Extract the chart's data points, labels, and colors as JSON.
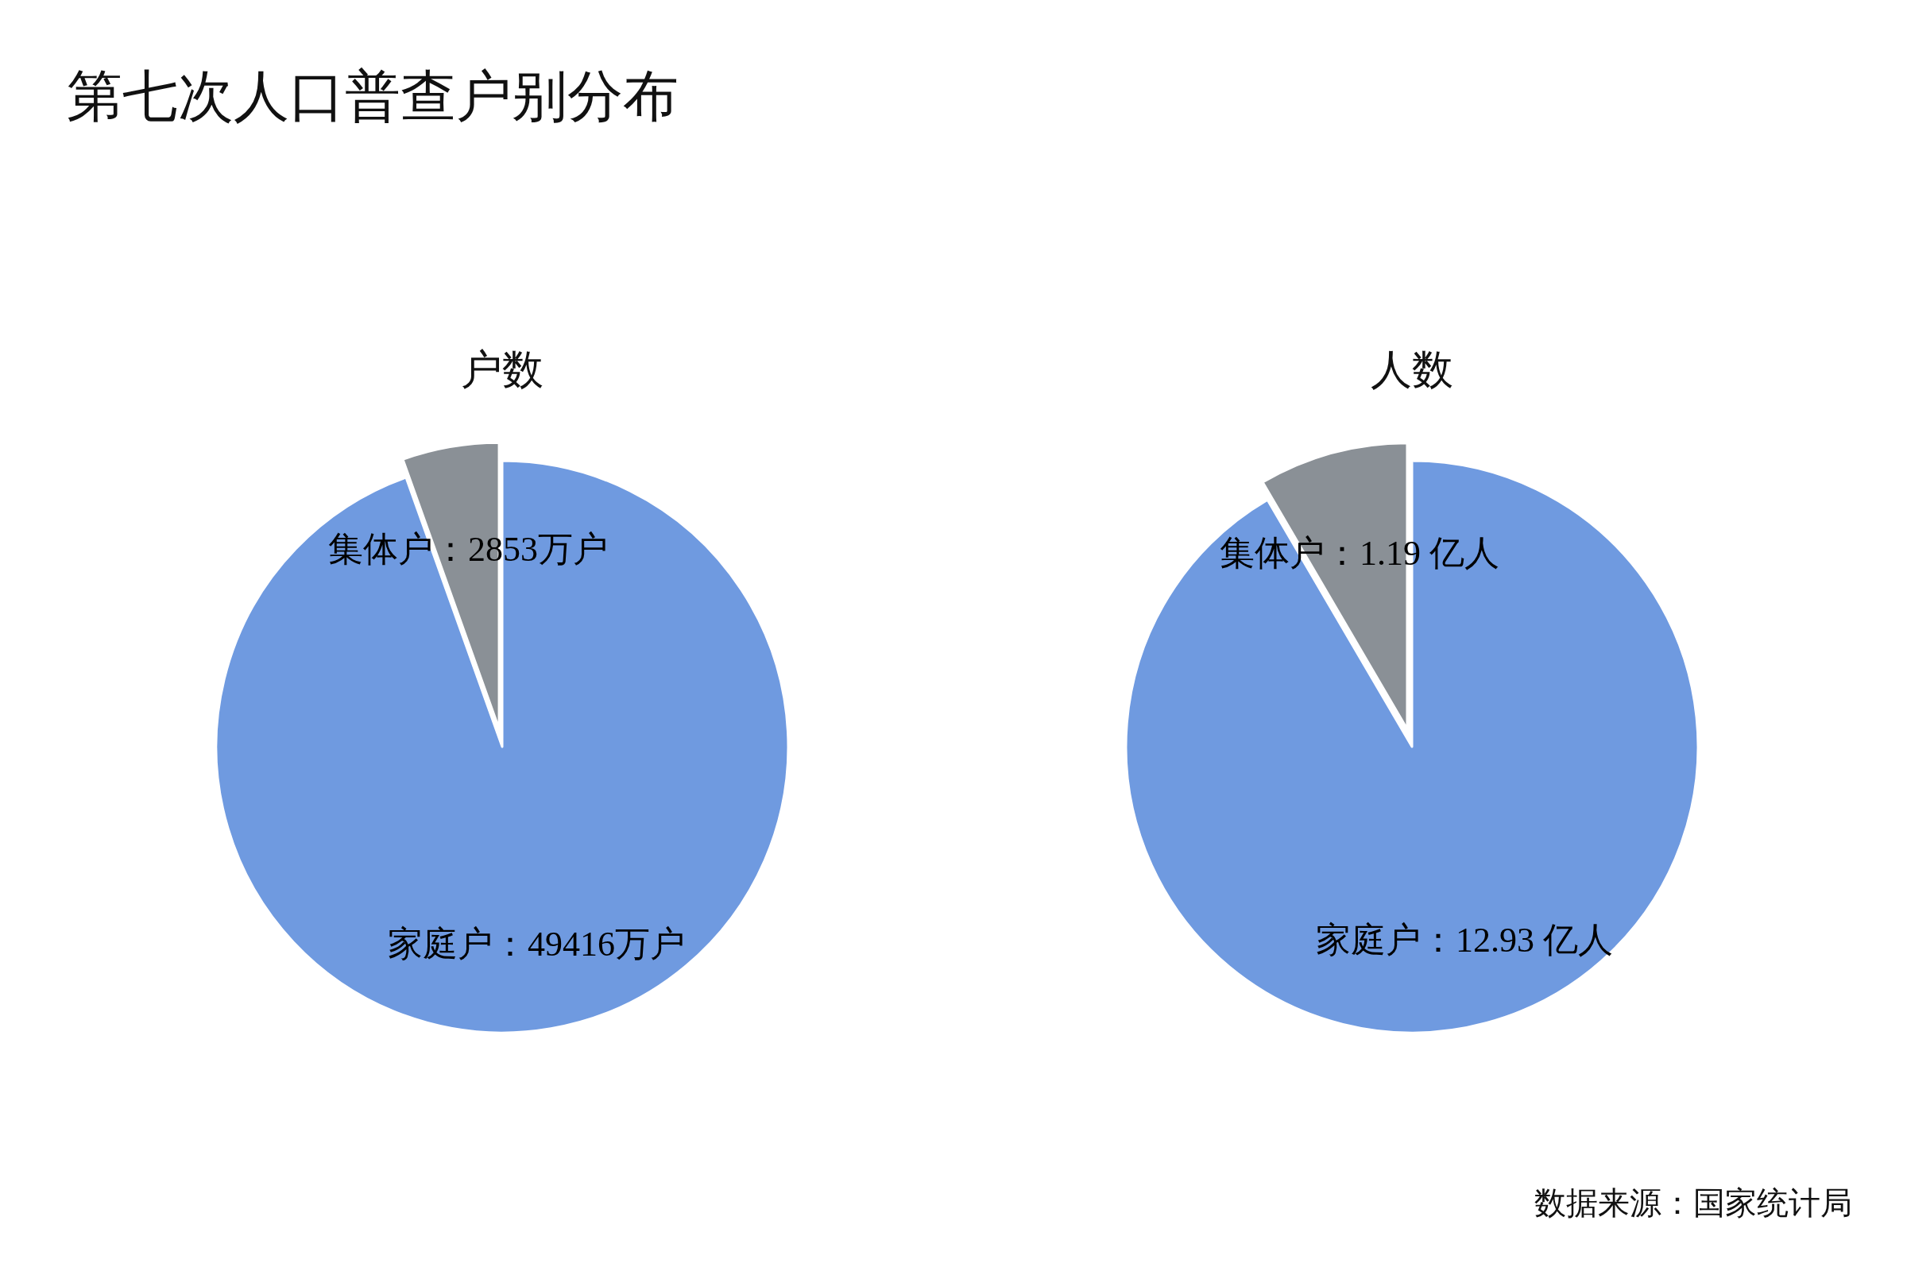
{
  "chart_data": [
    {
      "type": "pie",
      "title": "户数",
      "categories": [
        "家庭户",
        "集体户"
      ],
      "values": [
        49416,
        2853
      ],
      "value_labels": [
        "49416万户",
        "2853万户"
      ],
      "colors": [
        "#6f9ae0",
        "#8a9096"
      ],
      "annotations": [
        "第七次人口普查户别分布"
      ]
    },
    {
      "type": "pie",
      "title": "人数",
      "categories": [
        "家庭户",
        "集体户"
      ],
      "values": [
        12.93,
        1.19
      ],
      "value_labels": [
        "12.93 亿人",
        "1.19 亿人"
      ],
      "colors": [
        "#6f9ae0",
        "#8a9096"
      ],
      "annotations": [
        "数据来源：国家统计局"
      ]
    }
  ]
}
